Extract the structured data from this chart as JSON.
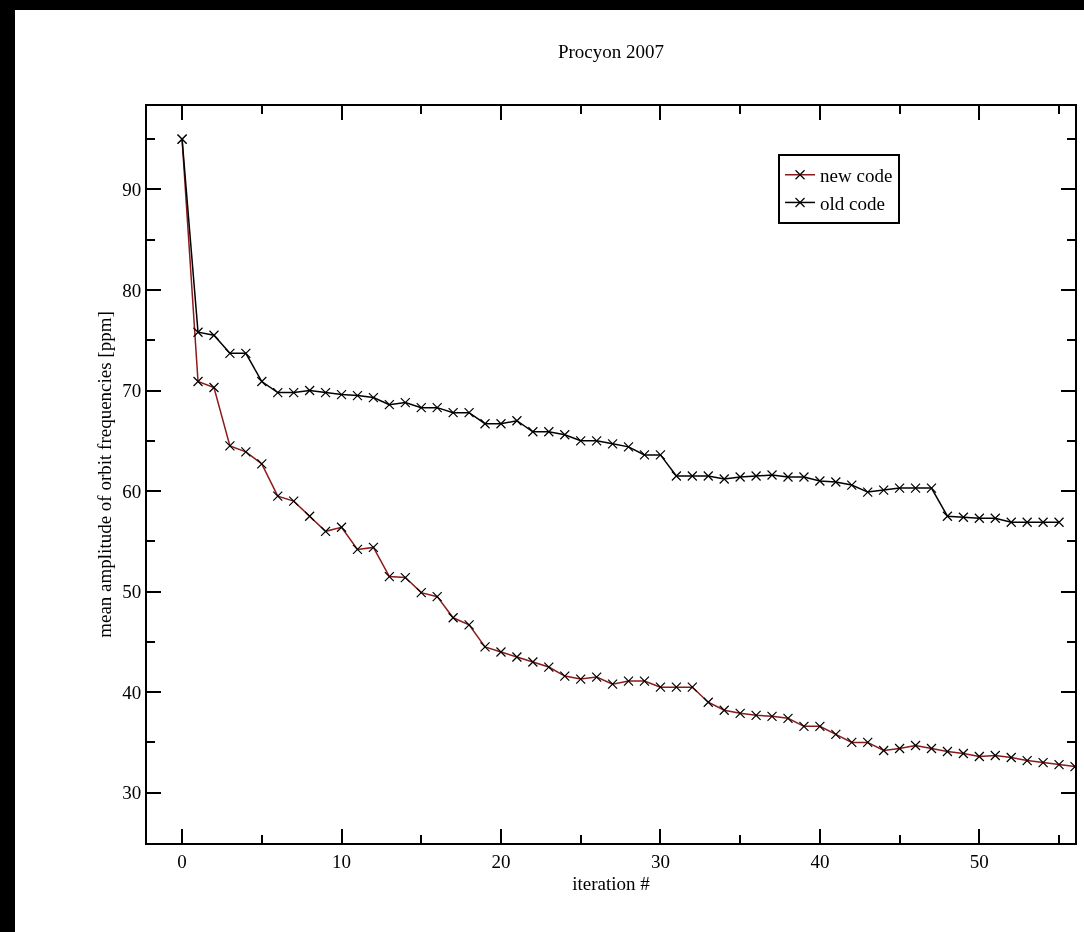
{
  "chart_data": {
    "type": "line",
    "title": "Procyon 2007",
    "xlabel": "iteration #",
    "ylabel": "mean amplitude of orbit frequencies [ppm]",
    "x": [
      0,
      1,
      2,
      3,
      4,
      5,
      6,
      7,
      8,
      9,
      10,
      11,
      12,
      13,
      14,
      15,
      16,
      17,
      18,
      19,
      20,
      21,
      22,
      23,
      24,
      25,
      26,
      27,
      28,
      29,
      30,
      31,
      32,
      33,
      34,
      35,
      36,
      37,
      38,
      39,
      40,
      41,
      42,
      43,
      44,
      45,
      46,
      47,
      48,
      49,
      50,
      51,
      52,
      53,
      54,
      55,
      56
    ],
    "series": [
      {
        "name": "new code",
        "color": "#8b1a1a",
        "values": [
          95,
          70.9,
          70.3,
          64.5,
          63.9,
          62.7,
          59.5,
          59.0,
          57.5,
          56.0,
          56.4,
          54.2,
          54.4,
          51.5,
          51.4,
          49.9,
          49.5,
          47.4,
          46.7,
          44.5,
          44.0,
          43.5,
          43.0,
          42.5,
          41.6,
          41.3,
          41.5,
          40.8,
          41.1,
          41.1,
          40.5,
          40.5,
          40.5,
          39.0,
          38.2,
          37.9,
          37.7,
          37.6,
          37.4,
          36.6,
          36.6,
          35.8,
          35.0,
          35.0,
          34.2,
          34.4,
          34.7,
          34.4,
          34.1,
          33.9,
          33.6,
          33.7,
          33.5,
          33.2,
          33.0,
          32.8,
          32.6
        ]
      },
      {
        "name": "old code",
        "color": "#000000",
        "values": [
          95,
          75.8,
          75.5,
          73.7,
          73.7,
          70.9,
          69.8,
          69.8,
          70.0,
          69.8,
          69.6,
          69.5,
          69.3,
          68.6,
          68.8,
          68.3,
          68.3,
          67.8,
          67.8,
          66.7,
          66.7,
          67.0,
          65.9,
          65.9,
          65.6,
          65.0,
          65.0,
          64.7,
          64.4,
          63.6,
          63.6,
          61.5,
          61.5,
          61.5,
          61.2,
          61.4,
          61.5,
          61.6,
          61.4,
          61.4,
          61.0,
          60.9,
          60.6,
          59.9,
          60.1,
          60.3,
          60.3,
          60.3,
          57.5,
          57.4,
          57.3,
          57.3,
          56.9,
          56.9,
          56.9,
          56.9,
          null
        ]
      }
    ],
    "xlim": [
      -2.2,
      56
    ],
    "ylim": [
      25,
      98.3
    ],
    "xticks": [
      0,
      {
        "value": 5,
        "label": null
      },
      10,
      {
        "value": 15,
        "label": null
      },
      20,
      {
        "value": 25,
        "label": null
      },
      30,
      {
        "value": 35,
        "label": null
      },
      40,
      {
        "value": 45,
        "label": null
      },
      50,
      {
        "value": 55,
        "label": null
      }
    ],
    "yticks": [
      30,
      {
        "value": 35,
        "label": null
      },
      40,
      {
        "value": 45,
        "label": null
      },
      50,
      {
        "value": 55,
        "label": null
      },
      60,
      {
        "value": 65,
        "label": null
      },
      70,
      {
        "value": 75,
        "label": null
      },
      80,
      {
        "value": 85,
        "label": null
      },
      90,
      {
        "value": 95,
        "label": null
      }
    ],
    "grid": false,
    "legend": "top right",
    "marker": "cross",
    "line_style": "solid"
  }
}
